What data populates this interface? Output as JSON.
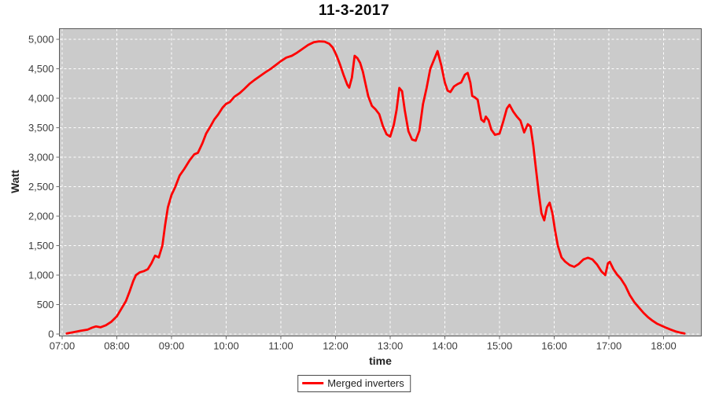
{
  "colors": {
    "line": "#fe0000",
    "plot_bg": "#cbcbcb",
    "grid": "#ffffff",
    "axis_text": "#3c3c3c",
    "plot_border": "#595959",
    "tick_mark": "#6e6e6e"
  },
  "chart_data": {
    "type": "line",
    "title": "11-3-2017",
    "xlabel": "time",
    "ylabel": "Watt",
    "ylim": [
      0,
      5000
    ],
    "xlim": [
      "06:57",
      "18:41"
    ],
    "grid": "white dashed on gray plot background",
    "x_ticks": [
      "07:00",
      "08:00",
      "09:00",
      "10:00",
      "11:00",
      "12:00",
      "13:00",
      "14:00",
      "15:00",
      "16:00",
      "17:00",
      "18:00"
    ],
    "y_tick_values": [
      0,
      500,
      1000,
      1500,
      2000,
      2500,
      3000,
      3500,
      4000,
      4500,
      5000
    ],
    "y_tick_labels": [
      "0",
      "500",
      "1,000",
      "1,500",
      "2,000",
      "2,500",
      "3,000",
      "3,500",
      "4,000",
      "4,500",
      "5,000"
    ],
    "legend": {
      "position": "bottom-center",
      "entries": [
        "Merged inverters"
      ]
    },
    "series": [
      {
        "name": "Merged inverters",
        "color": "#fe0000",
        "points": [
          [
            "07:05",
            10
          ],
          [
            "07:12",
            30
          ],
          [
            "07:20",
            55
          ],
          [
            "07:28",
            75
          ],
          [
            "07:33",
            110
          ],
          [
            "07:37",
            130
          ],
          [
            "07:42",
            115
          ],
          [
            "07:48",
            150
          ],
          [
            "07:54",
            210
          ],
          [
            "08:00",
            300
          ],
          [
            "08:05",
            430
          ],
          [
            "08:10",
            560
          ],
          [
            "08:14",
            720
          ],
          [
            "08:18",
            900
          ],
          [
            "08:21",
            1000
          ],
          [
            "08:25",
            1045
          ],
          [
            "08:30",
            1070
          ],
          [
            "08:34",
            1100
          ],
          [
            "08:38",
            1200
          ],
          [
            "08:42",
            1330
          ],
          [
            "08:46",
            1300
          ],
          [
            "08:50",
            1500
          ],
          [
            "08:53",
            1850
          ],
          [
            "08:56",
            2150
          ],
          [
            "09:00",
            2360
          ],
          [
            "09:04",
            2490
          ],
          [
            "09:09",
            2690
          ],
          [
            "09:14",
            2800
          ],
          [
            "09:20",
            2950
          ],
          [
            "09:25",
            3050
          ],
          [
            "09:29",
            3075
          ],
          [
            "09:34",
            3240
          ],
          [
            "09:38",
            3400
          ],
          [
            "09:43",
            3530
          ],
          [
            "09:47",
            3640
          ],
          [
            "09:51",
            3720
          ],
          [
            "09:56",
            3840
          ],
          [
            "10:00",
            3905
          ],
          [
            "10:04",
            3935
          ],
          [
            "10:09",
            4025
          ],
          [
            "10:15",
            4090
          ],
          [
            "10:20",
            4160
          ],
          [
            "10:26",
            4250
          ],
          [
            "10:31",
            4310
          ],
          [
            "10:37",
            4375
          ],
          [
            "10:43",
            4440
          ],
          [
            "10:49",
            4500
          ],
          [
            "10:55",
            4570
          ],
          [
            "11:00",
            4630
          ],
          [
            "11:06",
            4690
          ],
          [
            "11:12",
            4720
          ],
          [
            "11:18",
            4775
          ],
          [
            "11:24",
            4840
          ],
          [
            "11:30",
            4905
          ],
          [
            "11:36",
            4950
          ],
          [
            "11:42",
            4965
          ],
          [
            "11:48",
            4960
          ],
          [
            "11:53",
            4925
          ],
          [
            "11:57",
            4860
          ],
          [
            "12:01",
            4730
          ],
          [
            "12:05",
            4570
          ],
          [
            "12:09",
            4390
          ],
          [
            "12:13",
            4225
          ],
          [
            "12:15",
            4180
          ],
          [
            "12:18",
            4350
          ],
          [
            "12:21",
            4720
          ],
          [
            "12:24",
            4680
          ],
          [
            "12:27",
            4600
          ],
          [
            "12:30",
            4450
          ],
          [
            "12:33",
            4240
          ],
          [
            "12:36",
            4030
          ],
          [
            "12:40",
            3870
          ],
          [
            "12:44",
            3810
          ],
          [
            "12:48",
            3730
          ],
          [
            "12:52",
            3530
          ],
          [
            "12:56",
            3390
          ],
          [
            "13:00",
            3350
          ],
          [
            "13:04",
            3550
          ],
          [
            "13:07",
            3800
          ],
          [
            "13:10",
            4175
          ],
          [
            "13:13",
            4120
          ],
          [
            "13:16",
            3800
          ],
          [
            "13:20",
            3440
          ],
          [
            "13:24",
            3300
          ],
          [
            "13:28",
            3280
          ],
          [
            "13:32",
            3450
          ],
          [
            "13:36",
            3900
          ],
          [
            "13:40",
            4175
          ],
          [
            "13:44",
            4500
          ],
          [
            "13:48",
            4650
          ],
          [
            "13:52",
            4800
          ],
          [
            "13:56",
            4560
          ],
          [
            "14:00",
            4265
          ],
          [
            "14:03",
            4130
          ],
          [
            "14:06",
            4105
          ],
          [
            "14:10",
            4200
          ],
          [
            "14:14",
            4240
          ],
          [
            "14:18",
            4270
          ],
          [
            "14:22",
            4400
          ],
          [
            "14:25",
            4430
          ],
          [
            "14:28",
            4265
          ],
          [
            "14:30",
            4040
          ],
          [
            "14:33",
            4015
          ],
          [
            "14:36",
            3975
          ],
          [
            "14:40",
            3640
          ],
          [
            "14:43",
            3600
          ],
          [
            "14:45",
            3690
          ],
          [
            "14:48",
            3625
          ],
          [
            "14:51",
            3465
          ],
          [
            "14:55",
            3380
          ],
          [
            "15:00",
            3400
          ],
          [
            "15:04",
            3600
          ],
          [
            "15:08",
            3825
          ],
          [
            "15:11",
            3890
          ],
          [
            "15:15",
            3775
          ],
          [
            "15:19",
            3690
          ],
          [
            "15:23",
            3620
          ],
          [
            "15:27",
            3420
          ],
          [
            "15:31",
            3560
          ],
          [
            "15:34",
            3520
          ],
          [
            "15:37",
            3200
          ],
          [
            "15:40",
            2800
          ],
          [
            "15:43",
            2400
          ],
          [
            "15:46",
            2050
          ],
          [
            "15:49",
            1930
          ],
          [
            "15:52",
            2150
          ],
          [
            "15:55",
            2230
          ],
          [
            "15:58",
            2050
          ],
          [
            "16:01",
            1750
          ],
          [
            "16:04",
            1500
          ],
          [
            "16:08",
            1300
          ],
          [
            "16:12",
            1230
          ],
          [
            "16:17",
            1170
          ],
          [
            "16:22",
            1140
          ],
          [
            "16:27",
            1190
          ],
          [
            "16:32",
            1265
          ],
          [
            "16:37",
            1295
          ],
          [
            "16:42",
            1265
          ],
          [
            "16:47",
            1180
          ],
          [
            "16:52",
            1060
          ],
          [
            "16:56",
            1000
          ],
          [
            "16:59",
            1200
          ],
          [
            "17:01",
            1225
          ],
          [
            "17:05",
            1100
          ],
          [
            "17:09",
            1010
          ],
          [
            "17:13",
            940
          ],
          [
            "17:18",
            820
          ],
          [
            "17:23",
            660
          ],
          [
            "17:28",
            540
          ],
          [
            "17:33",
            450
          ],
          [
            "17:38",
            360
          ],
          [
            "17:43",
            285
          ],
          [
            "17:48",
            225
          ],
          [
            "17:53",
            175
          ],
          [
            "17:58",
            140
          ],
          [
            "18:03",
            105
          ],
          [
            "18:08",
            75
          ],
          [
            "18:13",
            45
          ],
          [
            "18:18",
            25
          ],
          [
            "18:23",
            10
          ]
        ]
      }
    ]
  }
}
